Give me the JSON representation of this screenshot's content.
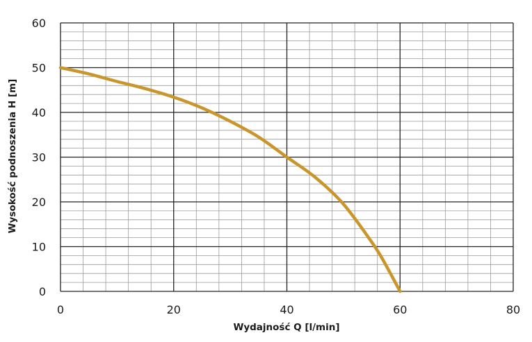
{
  "chart_data": {
    "type": "line",
    "title": "",
    "xlabel": "Wydajność Q [l/min]",
    "ylabel": "Wysokość podnoszenia H [m]",
    "xlim": [
      0,
      80
    ],
    "ylim": [
      0,
      60
    ],
    "x_ticks": [
      0,
      20,
      40,
      60,
      80
    ],
    "y_ticks": [
      0,
      10,
      20,
      30,
      40,
      50,
      60
    ],
    "x_tick_labels": [
      "0",
      "20",
      "40",
      "60",
      "80"
    ],
    "y_tick_labels": [
      "0",
      "10",
      "20",
      "30",
      "40",
      "50",
      "60"
    ],
    "grid": true,
    "major_grid_x_step": 20,
    "major_grid_y_step": 10,
    "minor_grid_x_step": 4,
    "minor_grid_y_step": 2,
    "series": [
      {
        "color": "#c8962a",
        "x": [
          0,
          5,
          10,
          15,
          20,
          25,
          30,
          35,
          40,
          45,
          50,
          55,
          57,
          60
        ],
        "y": [
          50,
          48.6,
          46.9,
          45.3,
          43.4,
          41,
          38,
          34.5,
          30,
          25.5,
          19.5,
          11,
          7,
          0
        ]
      }
    ]
  }
}
